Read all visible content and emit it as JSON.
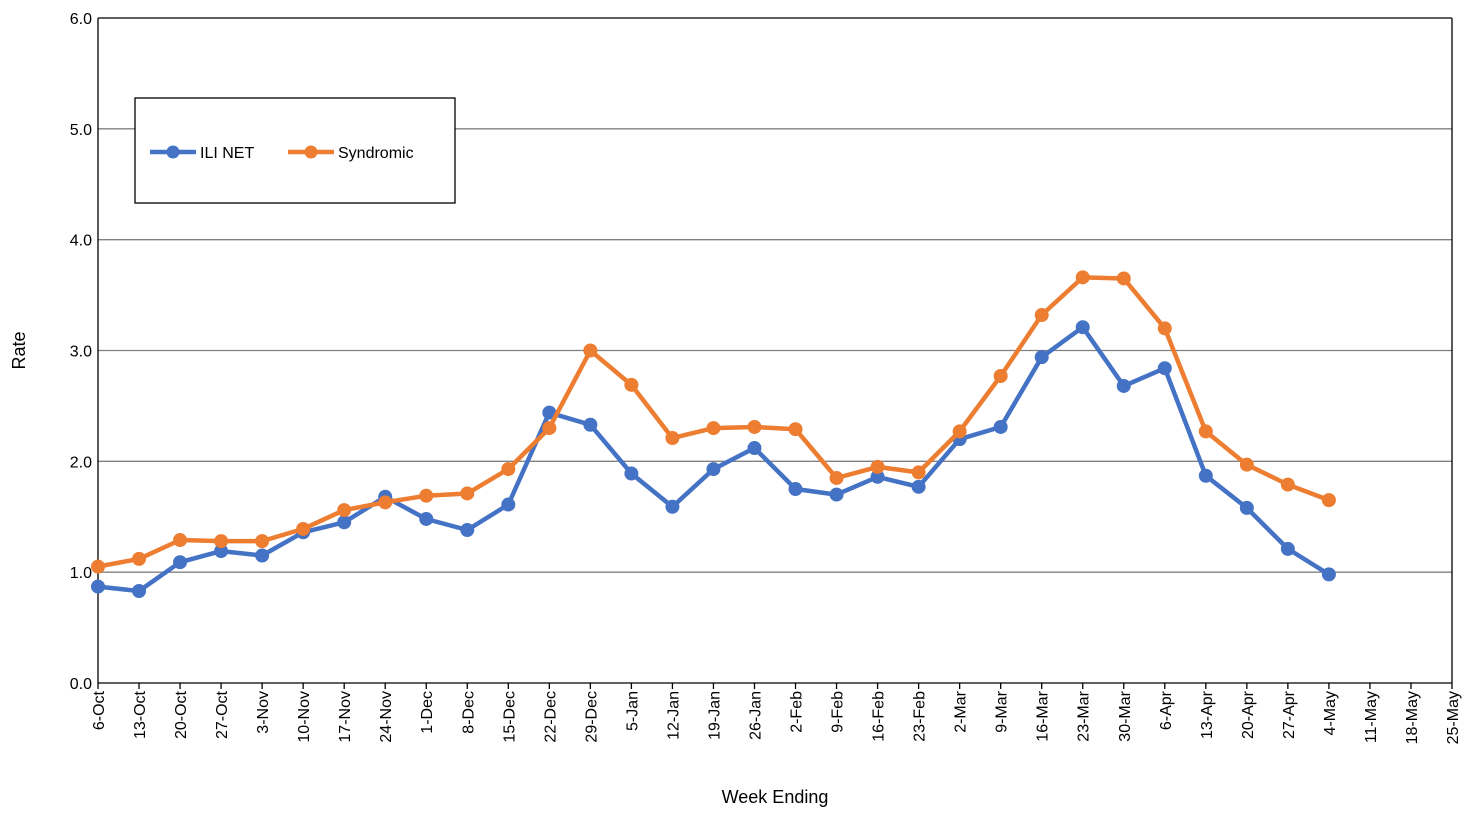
{
  "chart_data": {
    "type": "line",
    "title": "",
    "xlabel": "Week Ending",
    "ylabel": "Rate",
    "ylim": [
      0,
      6
    ],
    "yticks": [
      "0.0",
      "1.0",
      "2.0",
      "3.0",
      "4.0",
      "5.0",
      "6.0"
    ],
    "grid": true,
    "legend_position": "top-left",
    "categories": [
      "6-Oct",
      "13-Oct",
      "20-Oct",
      "27-Oct",
      "3-Nov",
      "10-Nov",
      "17-Nov",
      "24-Nov",
      "1-Dec",
      "8-Dec",
      "15-Dec",
      "22-Dec",
      "29-Dec",
      "5-Jan",
      "12-Jan",
      "19-Jan",
      "26-Jan",
      "2-Feb",
      "9-Feb",
      "16-Feb",
      "23-Feb",
      "2-Mar",
      "9-Mar",
      "16-Mar",
      "23-Mar",
      "30-Mar",
      "6-Apr",
      "13-Apr",
      "20-Apr",
      "27-Apr",
      "4-May",
      "11-May",
      "18-May",
      "25-May"
    ],
    "series": [
      {
        "name": "ILI NET",
        "color": "#4472C4",
        "values": [
          0.87,
          0.83,
          1.09,
          1.19,
          1.15,
          1.36,
          1.45,
          1.68,
          1.48,
          1.38,
          1.61,
          2.44,
          2.33,
          1.89,
          1.59,
          1.93,
          2.12,
          1.75,
          1.7,
          1.86,
          1.77,
          2.2,
          2.31,
          2.94,
          3.21,
          2.68,
          2.84,
          1.87,
          1.58,
          1.21,
          0.98,
          null,
          null,
          null
        ]
      },
      {
        "name": "Syndromic",
        "color": "#ED7D31",
        "values": [
          1.05,
          1.12,
          1.29,
          1.28,
          1.28,
          1.39,
          1.56,
          1.63,
          1.69,
          1.71,
          1.93,
          2.3,
          3.0,
          2.69,
          2.21,
          2.3,
          2.31,
          2.29,
          1.85,
          1.95,
          1.9,
          2.27,
          2.77,
          3.32,
          3.66,
          3.65,
          3.2,
          2.27,
          1.97,
          1.79,
          1.65,
          null,
          null,
          null
        ]
      }
    ]
  }
}
